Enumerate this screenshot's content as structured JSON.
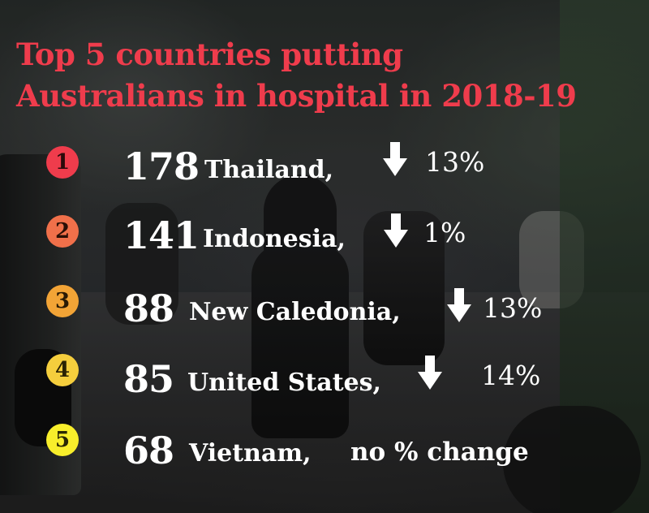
{
  "title": {
    "line1": "Top 5 countries putting",
    "line2": "Australians in hospital in 2018-19"
  },
  "colors": {
    "title": "#ef3c4c",
    "text": "#ffffff",
    "rank_badges": [
      "#ef3c4c",
      "#f0704a",
      "#f2a436",
      "#f5ce3d",
      "#f8ee2b"
    ]
  },
  "rows": [
    {
      "rank": "1",
      "count": "178",
      "country": "Thailand,",
      "trend": "down",
      "change": "13%"
    },
    {
      "rank": "2",
      "count": "141",
      "country": "Indonesia,",
      "trend": "down",
      "change": "1%"
    },
    {
      "rank": "3",
      "count": "88",
      "country": "New Caledonia,",
      "trend": "down",
      "change": "13%"
    },
    {
      "rank": "4",
      "count": "85",
      "country": "United States,",
      "trend": "down",
      "change": "14%"
    },
    {
      "rank": "5",
      "count": "68",
      "country": "Vietnam,",
      "trend": "none",
      "change": "no % change"
    }
  ]
}
